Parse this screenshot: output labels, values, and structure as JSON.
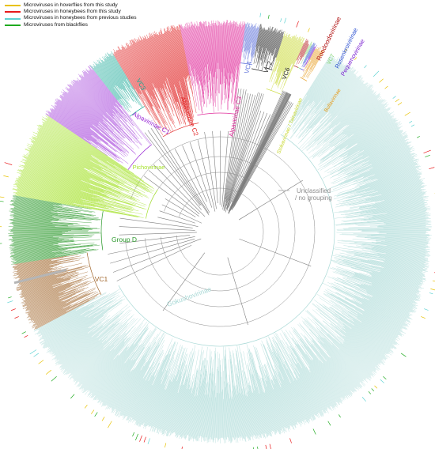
{
  "legend": [
    {
      "label": "Microviruses in hoverflies from this study",
      "color": "#e8c200"
    },
    {
      "label": "Microviruses in honeybees from this study",
      "color": "#e8191b"
    },
    {
      "label": "Microviruses in honeybees from previous studies",
      "color": "#5fd3d3"
    },
    {
      "label": "Microviruses from blackflies",
      "color": "#1faa1f"
    }
  ],
  "clades": [
    {
      "label": "Gokushovirinae",
      "color": "#a9d9d6"
    },
    {
      "label": "VC1",
      "color": "#a0652a"
    },
    {
      "label": "Group D",
      "color": "#2e9a2e"
    },
    {
      "label": "Pichovirinae",
      "color": "#a6e22e"
    },
    {
      "label": "Alpavirinae C1",
      "color": "#9a2bd6"
    },
    {
      "label": "VC3",
      "color": "#17a896"
    },
    {
      "label": "Alpavirinae C2",
      "color": "#e02020"
    },
    {
      "label": "Alpavirinae C3",
      "color": "#e02c9b"
    },
    {
      "label": "VC4",
      "color": "#5a6ed8"
    },
    {
      "label": "VC2",
      "color": "#222222"
    },
    {
      "label": "VC6",
      "color": "#222222"
    },
    {
      "label": "Stokavirinae / Tainavirinae",
      "color": "#c8d832"
    },
    {
      "label": "Bullavirinae",
      "color": "#e69a18"
    },
    {
      "label": "Roodoodovirinae",
      "color": "#b01010"
    },
    {
      "label": "VC7",
      "color": "#7fd46a"
    },
    {
      "label": "Rosenkroivirinae",
      "color": "#2a4fd0"
    },
    {
      "label": "Pequenovirinae",
      "color": "#7a1fd0"
    }
  ],
  "unclassified": {
    "line1": "Unclassified",
    "line2": "/ no grouping",
    "color": "#b5b5b5"
  }
}
